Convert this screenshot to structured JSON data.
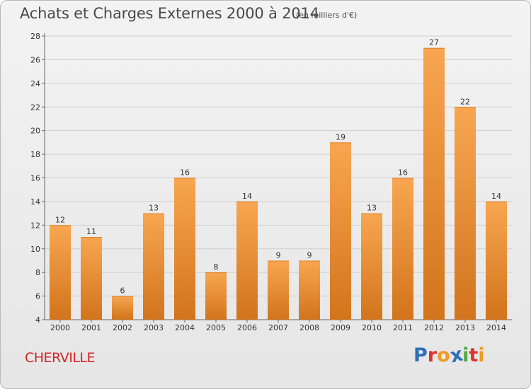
{
  "title": "Achats et Charges Externes 2000 à 2014",
  "unit_note": "(en milliers d'€)",
  "commune": "CHERVILLE",
  "logo": {
    "text": "Proxiti",
    "letters": [
      {
        "ch": "P",
        "color": "#2e6fb7"
      },
      {
        "ch": "r",
        "color": "#e0312d"
      },
      {
        "ch": "o",
        "color": "#f09a24"
      },
      {
        "ch": "x",
        "color": "#2e6fb7"
      },
      {
        "ch": "i",
        "color": "#54a93f"
      },
      {
        "ch": "t",
        "color": "#e0312d"
      },
      {
        "ch": "i",
        "color": "#f09a24"
      }
    ]
  },
  "colors": {
    "bar_light": "#f8a651",
    "bar_dark": "#d2741c",
    "grid": "#cfcfcf",
    "axis": "#666666"
  },
  "chart_data": {
    "type": "bar",
    "title": "Achats et Charges Externes 2000 à 2014",
    "subtitle": "(en milliers d'€)",
    "xlabel": "",
    "ylabel": "",
    "categories": [
      "2000",
      "2001",
      "2002",
      "2003",
      "2004",
      "2005",
      "2006",
      "2007",
      "2008",
      "2009",
      "2010",
      "2011",
      "2012",
      "2013",
      "2014"
    ],
    "values": [
      12,
      11,
      6,
      13,
      16,
      8,
      14,
      9,
      9,
      19,
      13,
      16,
      27,
      22,
      14
    ],
    "ylim": [
      4,
      28
    ],
    "yticks": [
      4,
      6,
      8,
      10,
      12,
      14,
      16,
      18,
      20,
      22,
      24,
      26,
      28
    ],
    "grid": true,
    "data_labels": true
  }
}
